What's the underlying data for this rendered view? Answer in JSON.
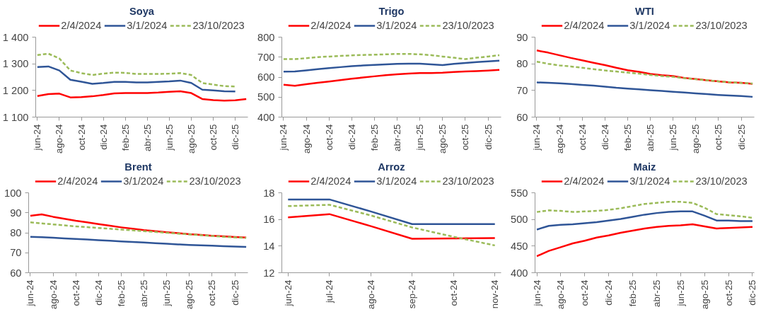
{
  "chart_data": [
    {
      "type": "line",
      "title": "Soya",
      "legend": "top",
      "categories": [
        "jun-24",
        null,
        "ago-24",
        null,
        "oct-24",
        null,
        "dic-24",
        null,
        "feb-25",
        null,
        "abr-25",
        null,
        "jun-25",
        null,
        "ago-25",
        null,
        "oct-25",
        null,
        "dic-25",
        null
      ],
      "ylim": [
        1100,
        1400
      ],
      "yticks": [
        {
          "value": 1100,
          "label": "1 100"
        },
        {
          "value": 1200,
          "label": "1 200"
        },
        {
          "value": 1300,
          "label": "1 300"
        },
        {
          "value": 1400,
          "label": "1 400"
        }
      ],
      "series": [
        {
          "name": "2/4/2024",
          "color": "#ff0000",
          "line_style": "solid",
          "values": [
            1179,
            1186,
            1188,
            1174,
            1175,
            1178,
            1183,
            1189,
            1190,
            1190,
            1190,
            1192,
            1195,
            1197,
            1190,
            1168,
            1164,
            1162,
            1163,
            1168
          ]
        },
        {
          "name": "3/1/2024",
          "color": "#2f5597",
          "line_style": "solid",
          "values": [
            1288,
            1290,
            1275,
            1240,
            1233,
            1225,
            1228,
            1232,
            1232,
            1230,
            1230,
            1232,
            1234,
            1237,
            1228,
            1203,
            1200,
            1197,
            1196,
            null
          ]
        },
        {
          "name": "23/10/2023",
          "color": "#9bbb59",
          "line_style": "dashed",
          "values": [
            1333,
            1338,
            1320,
            1275,
            1265,
            1258,
            1263,
            1267,
            1266,
            1262,
            1262,
            1262,
            1263,
            1265,
            1258,
            1228,
            1222,
            1216,
            1215,
            null
          ]
        }
      ]
    },
    {
      "type": "line",
      "title": "Trigo",
      "legend": "top",
      "categories": [
        "jun-24",
        null,
        "ago-24",
        null,
        "oct-24",
        null,
        "dic-24",
        null,
        "feb-25",
        null,
        "abr-25",
        null,
        "jun-25",
        null,
        "ago-25",
        null,
        "oct-25",
        null,
        "dic-25",
        null
      ],
      "ylim": [
        400,
        800
      ],
      "yticks": [
        400,
        500,
        600,
        700,
        800
      ],
      "series": [
        {
          "name": "2/4/2024",
          "color": "#ff0000",
          "line_style": "solid",
          "values": [
            562,
            557,
            565,
            572,
            578,
            585,
            592,
            598,
            604,
            610,
            614,
            618,
            620,
            620,
            622,
            626,
            628,
            630,
            633,
            636
          ]
        },
        {
          "name": "3/1/2024",
          "color": "#2f5597",
          "line_style": "solid",
          "values": [
            627,
            628,
            634,
            640,
            645,
            650,
            655,
            658,
            661,
            664,
            666,
            667,
            667,
            664,
            660,
            666,
            671,
            675,
            679,
            682
          ]
        },
        {
          "name": "23/10/2023",
          "color": "#9bbb59",
          "line_style": "dashed",
          "values": [
            690,
            690,
            695,
            700,
            703,
            706,
            709,
            711,
            712,
            714,
            716,
            716,
            714,
            710,
            703,
            697,
            690,
            697,
            703,
            710
          ]
        }
      ]
    },
    {
      "type": "line",
      "title": "WTI",
      "legend": "top",
      "categories": [
        "jun-24",
        null,
        "ago-24",
        null,
        "oct-24",
        null,
        "dic-24",
        null,
        "feb-25",
        null,
        "abr-25",
        null,
        "jun-25",
        null,
        "ago-25",
        null,
        "oct-25",
        null,
        "dic-25",
        null
      ],
      "ylim": [
        60,
        90
      ],
      "yticks": [
        60,
        70,
        80,
        90
      ],
      "series": [
        {
          "name": "2/4/2024",
          "color": "#ff0000",
          "line_style": "solid",
          "values": [
            85.0,
            84.2,
            83.2,
            82.2,
            81.3,
            80.4,
            79.5,
            78.5,
            77.6,
            77.0,
            76.2,
            75.7,
            75.4,
            74.7,
            74.3,
            73.8,
            73.4,
            73.0,
            72.9,
            72.5
          ]
        },
        {
          "name": "3/1/2024",
          "color": "#2f5597",
          "line_style": "solid",
          "values": [
            73.0,
            72.9,
            72.7,
            72.4,
            72.1,
            71.8,
            71.4,
            71.0,
            70.7,
            70.4,
            70.1,
            69.8,
            69.5,
            69.2,
            68.9,
            68.6,
            68.3,
            68.1,
            67.9,
            67.6
          ]
        },
        {
          "name": "23/10/2023",
          "color": "#9bbb59",
          "line_style": "dashed",
          "values": [
            80.8,
            80.0,
            79.4,
            79.0,
            78.5,
            78.0,
            77.5,
            77.1,
            76.7,
            76.3,
            75.8,
            75.4,
            75.1,
            74.6,
            74.2,
            73.8,
            73.4,
            73.1,
            72.8,
            72.6
          ]
        }
      ]
    },
    {
      "type": "line",
      "title": "Brent",
      "legend": "top",
      "categories": [
        "jun-24",
        null,
        "ago-24",
        null,
        "oct-24",
        null,
        "dic-24",
        null,
        "feb-25",
        null,
        "abr-25",
        null,
        "jun-25",
        null,
        "ago-25",
        null,
        "oct-25",
        null,
        "dic-25",
        null
      ],
      "ylim": [
        60,
        100
      ],
      "yticks": [
        60,
        70,
        80,
        90,
        100
      ],
      "series": [
        {
          "name": "2/4/2024",
          "color": "#ff0000",
          "line_style": "solid",
          "values": [
            88.5,
            89.2,
            88.0,
            87.0,
            86.0,
            85.2,
            84.3,
            83.5,
            82.7,
            82.0,
            81.3,
            80.8,
            80.3,
            79.8,
            79.3,
            78.9,
            78.5,
            78.2,
            77.9,
            77.6
          ]
        },
        {
          "name": "3/1/2024",
          "color": "#2f5597",
          "line_style": "solid",
          "values": [
            78.0,
            77.8,
            77.5,
            77.2,
            76.9,
            76.6,
            76.3,
            76.0,
            75.7,
            75.4,
            75.1,
            74.8,
            74.5,
            74.2,
            73.9,
            73.7,
            73.5,
            73.3,
            73.1,
            72.9
          ]
        },
        {
          "name": "23/10/2023",
          "color": "#9bbb59",
          "line_style": "dashed",
          "values": [
            85.2,
            84.7,
            84.2,
            83.7,
            83.2,
            82.8,
            82.4,
            82.0,
            81.6,
            81.2,
            80.8,
            80.4,
            80.0,
            79.6,
            79.2,
            78.8,
            78.4,
            78.0,
            77.7,
            77.4
          ]
        }
      ]
    },
    {
      "type": "line",
      "title": "Arroz",
      "legend": "top",
      "categories": [
        "jun-24",
        "jul-24",
        "ago-24",
        "sep-24",
        "oct-24",
        "nov-24"
      ],
      "ylim": [
        12,
        18
      ],
      "yticks": [
        12,
        14,
        16,
        18
      ],
      "series": [
        {
          "name": "2/4/2024",
          "color": "#ff0000",
          "line_style": "solid",
          "values": [
            16.15,
            16.4,
            15.5,
            14.55,
            14.58,
            14.6
          ]
        },
        {
          "name": "3/1/2024",
          "color": "#2f5597",
          "line_style": "solid",
          "values": [
            17.5,
            17.5,
            16.6,
            15.65,
            15.65,
            15.65
          ]
        },
        {
          "name": "23/10/2023",
          "color": "#9bbb59",
          "line_style": "dashed",
          "values": [
            17.0,
            17.1,
            16.3,
            15.4,
            14.7,
            14.05
          ]
        }
      ]
    },
    {
      "type": "line",
      "title": "Maiz",
      "legend": "top",
      "categories": [
        "jun-24",
        null,
        "ago-24",
        null,
        "oct-24",
        null,
        "dic-24",
        null,
        "feb-25",
        null,
        "abr-25",
        null,
        "jun-25",
        null,
        "ago-25",
        null,
        "oct-25",
        null,
        "dic-25"
      ],
      "ylim": [
        400,
        550
      ],
      "yticks": [
        400,
        450,
        500,
        550
      ],
      "series": [
        {
          "name": "2/4/2024",
          "color": "#ff0000",
          "line_style": "solid",
          "values": [
            431,
            441,
            448,
            455,
            460,
            466,
            470,
            475,
            479,
            483,
            486,
            488,
            489,
            491,
            487,
            483,
            484,
            485,
            486
          ]
        },
        {
          "name": "3/1/2024",
          "color": "#2f5597",
          "line_style": "solid",
          "values": [
            481,
            488,
            490,
            491,
            493,
            495,
            498,
            501,
            505,
            509,
            512,
            514,
            515,
            515,
            507,
            498,
            498,
            497,
            497
          ]
        },
        {
          "name": "23/10/2023",
          "color": "#9bbb59",
          "line_style": "dashed",
          "values": [
            514,
            517,
            516,
            514,
            515,
            516,
            518,
            521,
            525,
            529,
            531,
            533,
            533,
            531,
            522,
            510,
            508,
            506,
            503
          ]
        }
      ]
    }
  ]
}
